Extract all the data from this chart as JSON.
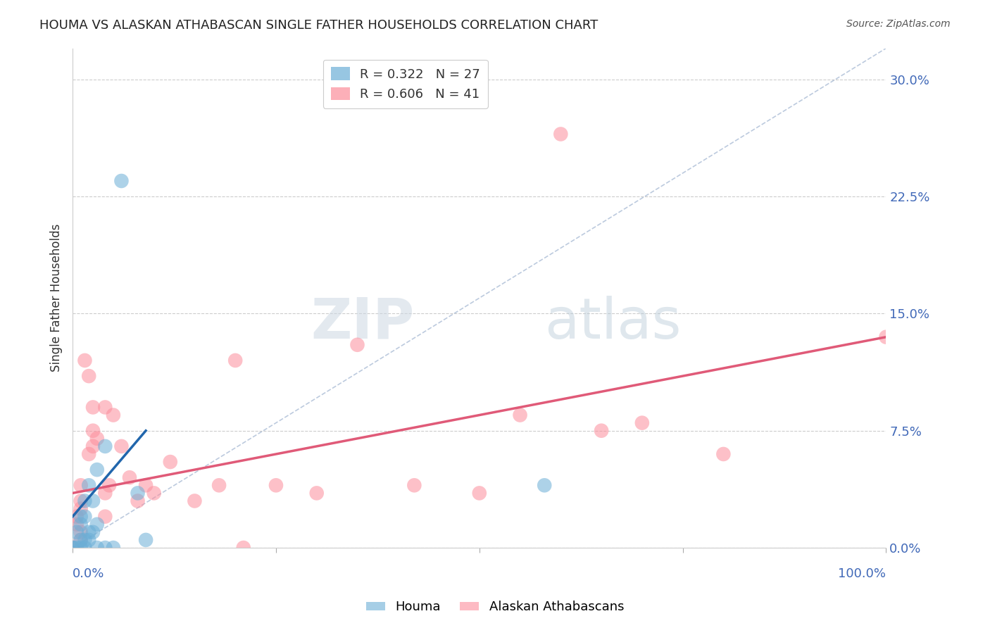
{
  "title": "HOUMA VS ALASKAN ATHABASCAN SINGLE FATHER HOUSEHOLDS CORRELATION CHART",
  "source": "Source: ZipAtlas.com",
  "ylabel": "Single Father Households",
  "yticks": [
    "0.0%",
    "7.5%",
    "15.0%",
    "22.5%",
    "30.0%"
  ],
  "ytick_vals": [
    0.0,
    0.075,
    0.15,
    0.225,
    0.3
  ],
  "xlim": [
    0.0,
    1.0
  ],
  "ylim": [
    0.0,
    0.32
  ],
  "houma_color": "#6baed6",
  "alaska_color": "#fc8d9b",
  "houma_line_color": "#2166ac",
  "alaska_line_color": "#e05a78",
  "diagonal_color": "#a0b4d0",
  "background_color": "#ffffff",
  "watermark_zip": "ZIP",
  "watermark_atlas": "atlas",
  "houma_points": [
    [
      0.0,
      0.0
    ],
    [
      0.005,
      0.01
    ],
    [
      0.01,
      0.02
    ],
    [
      0.01,
      0.015
    ],
    [
      0.01,
      0.005
    ],
    [
      0.01,
      0.0
    ],
    [
      0.015,
      0.03
    ],
    [
      0.015,
      0.02
    ],
    [
      0.015,
      0.005
    ],
    [
      0.015,
      0.0
    ],
    [
      0.02,
      0.04
    ],
    [
      0.02,
      0.01
    ],
    [
      0.02,
      0.005
    ],
    [
      0.025,
      0.03
    ],
    [
      0.025,
      0.01
    ],
    [
      0.03,
      0.05
    ],
    [
      0.03,
      0.015
    ],
    [
      0.03,
      0.0
    ],
    [
      0.04,
      0.065
    ],
    [
      0.04,
      0.0
    ],
    [
      0.05,
      0.0
    ],
    [
      0.06,
      0.235
    ],
    [
      0.08,
      0.035
    ],
    [
      0.09,
      0.005
    ],
    [
      0.58,
      0.04
    ],
    [
      0.0,
      0.0
    ],
    [
      0.005,
      0.0
    ]
  ],
  "alaska_points": [
    [
      0.0,
      0.0
    ],
    [
      0.005,
      0.02
    ],
    [
      0.005,
      0.015
    ],
    [
      0.01,
      0.04
    ],
    [
      0.01,
      0.03
    ],
    [
      0.01,
      0.025
    ],
    [
      0.01,
      0.01
    ],
    [
      0.01,
      0.005
    ],
    [
      0.015,
      0.12
    ],
    [
      0.02,
      0.11
    ],
    [
      0.02,
      0.06
    ],
    [
      0.025,
      0.09
    ],
    [
      0.025,
      0.075
    ],
    [
      0.025,
      0.065
    ],
    [
      0.03,
      0.07
    ],
    [
      0.04,
      0.09
    ],
    [
      0.04,
      0.035
    ],
    [
      0.04,
      0.02
    ],
    [
      0.045,
      0.04
    ],
    [
      0.05,
      0.085
    ],
    [
      0.06,
      0.065
    ],
    [
      0.07,
      0.045
    ],
    [
      0.08,
      0.03
    ],
    [
      0.09,
      0.04
    ],
    [
      0.1,
      0.035
    ],
    [
      0.12,
      0.055
    ],
    [
      0.15,
      0.03
    ],
    [
      0.18,
      0.04
    ],
    [
      0.2,
      0.12
    ],
    [
      0.21,
      0.0
    ],
    [
      0.25,
      0.04
    ],
    [
      0.3,
      0.035
    ],
    [
      0.35,
      0.13
    ],
    [
      0.42,
      0.04
    ],
    [
      0.5,
      0.035
    ],
    [
      0.55,
      0.085
    ],
    [
      0.6,
      0.265
    ],
    [
      0.65,
      0.075
    ],
    [
      0.7,
      0.08
    ],
    [
      0.8,
      0.06
    ],
    [
      1.0,
      0.135
    ]
  ],
  "houma_reg_line": [
    [
      0.0,
      0.02
    ],
    [
      0.09,
      0.075
    ]
  ],
  "alaska_reg_line": [
    [
      0.0,
      0.035
    ],
    [
      1.0,
      0.135
    ]
  ],
  "legend_houma_r": "R = ",
  "legend_houma_rv": "0.322",
  "legend_houma_n": "  N = ",
  "legend_houma_nv": "27",
  "legend_alaska_r": "R = ",
  "legend_alaska_rv": "0.606",
  "legend_alaska_n": "  N = ",
  "legend_alaska_nv": "41"
}
